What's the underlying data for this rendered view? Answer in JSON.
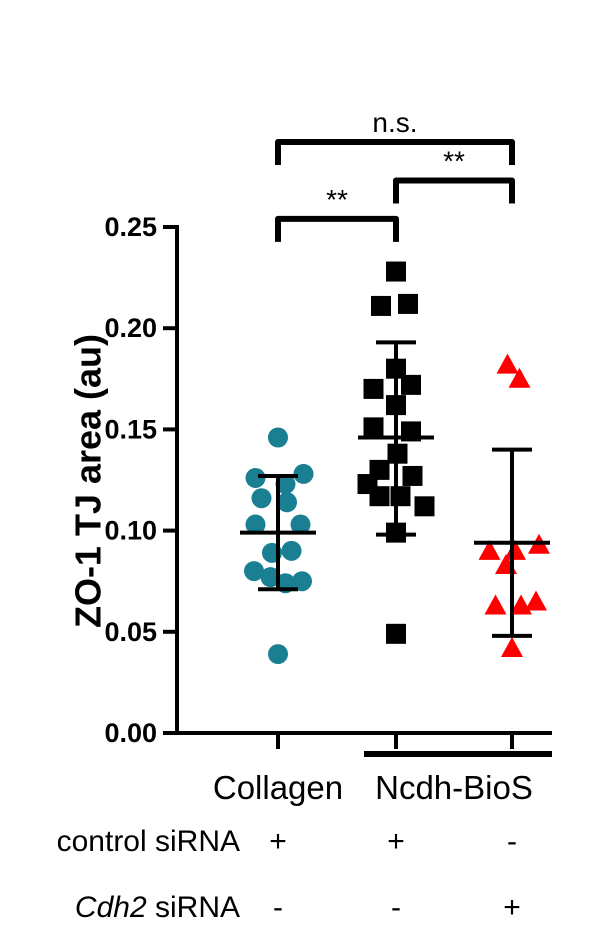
{
  "chart_data": {
    "type": "scatter",
    "ylabel": "ZO-1 TJ area (au)",
    "ylim": [
      0,
      0.25
    ],
    "yticks": [
      0,
      0.05,
      0.1,
      0.15,
      0.2,
      0.25
    ],
    "ytick_labels": [
      "0.00",
      "0.05",
      "0.10",
      "0.15",
      "0.20",
      "0.25"
    ],
    "category_labels": [
      "Collagen",
      "Ncdh-BioS"
    ],
    "conditions": [
      {
        "label": "control siRNA",
        "italic_part": "",
        "signs": [
          "+",
          "+",
          "-"
        ]
      },
      {
        "label": "siRNA",
        "italic_part": "Cdh2",
        "signs": [
          "-",
          "-",
          "+"
        ]
      }
    ],
    "series": [
      {
        "marker": "circle",
        "color": "#1a7f93",
        "mean": 0.099,
        "sd_low": 0.071,
        "sd_high": 0.127,
        "points": [
          {
            "dx": 0,
            "y": 0.146
          },
          {
            "dx": -0.75,
            "y": 0.126
          },
          {
            "dx": 0.25,
            "y": 0.123
          },
          {
            "dx": 0.85,
            "y": 0.128
          },
          {
            "dx": -0.55,
            "y": 0.116
          },
          {
            "dx": 0.3,
            "y": 0.114
          },
          {
            "dx": -0.75,
            "y": 0.103
          },
          {
            "dx": 0.75,
            "y": 0.103
          },
          {
            "dx": -0.2,
            "y": 0.089
          },
          {
            "dx": 0.45,
            "y": 0.09
          },
          {
            "dx": -0.8,
            "y": 0.08
          },
          {
            "dx": -0.25,
            "y": 0.077
          },
          {
            "dx": 0.8,
            "y": 0.075
          },
          {
            "dx": 0.25,
            "y": 0.074
          },
          {
            "dx": 0,
            "y": 0.039
          }
        ]
      },
      {
        "marker": "square",
        "color": "#000000",
        "mean": 0.146,
        "sd_low": 0.098,
        "sd_high": 0.193,
        "points": [
          {
            "dx": 0,
            "y": 0.228
          },
          {
            "dx": -0.5,
            "y": 0.211
          },
          {
            "dx": 0.4,
            "y": 0.212
          },
          {
            "dx": -0.75,
            "y": 0.17
          },
          {
            "dx": 0,
            "y": 0.18
          },
          {
            "dx": 0.5,
            "y": 0.172
          },
          {
            "dx": 0,
            "y": 0.162
          },
          {
            "dx": -0.75,
            "y": 0.151
          },
          {
            "dx": 0.5,
            "y": 0.149
          },
          {
            "dx": 0.05,
            "y": 0.138
          },
          {
            "dx": -0.55,
            "y": 0.13
          },
          {
            "dx": -0.95,
            "y": 0.123
          },
          {
            "dx": 0.55,
            "y": 0.127
          },
          {
            "dx": -0.55,
            "y": 0.117
          },
          {
            "dx": 0.15,
            "y": 0.117
          },
          {
            "dx": 0.95,
            "y": 0.112
          },
          {
            "dx": 0,
            "y": 0.099
          },
          {
            "dx": 0,
            "y": 0.049
          }
        ]
      },
      {
        "marker": "triangle",
        "color": "#ff0000",
        "mean": 0.094,
        "sd_low": 0.048,
        "sd_high": 0.14,
        "points": [
          {
            "dx": -0.15,
            "y": 0.182
          },
          {
            "dx": 0.25,
            "y": 0.175
          },
          {
            "dx": -0.75,
            "y": 0.09
          },
          {
            "dx": 0.1,
            "y": 0.09
          },
          {
            "dx": 0.9,
            "y": 0.093
          },
          {
            "dx": -0.2,
            "y": 0.083
          },
          {
            "dx": -0.55,
            "y": 0.063
          },
          {
            "dx": 0.3,
            "y": 0.063
          },
          {
            "dx": 0.8,
            "y": 0.065
          },
          {
            "dx": 0,
            "y": 0.042
          }
        ]
      }
    ],
    "significance": [
      {
        "from": 0,
        "to": 1,
        "label": "**",
        "y": 0.254
      },
      {
        "from": 1,
        "to": 2,
        "label": "**",
        "y": 0.273
      },
      {
        "from": 0,
        "to": 2,
        "label": "n.s.",
        "y": 0.292
      }
    ]
  }
}
